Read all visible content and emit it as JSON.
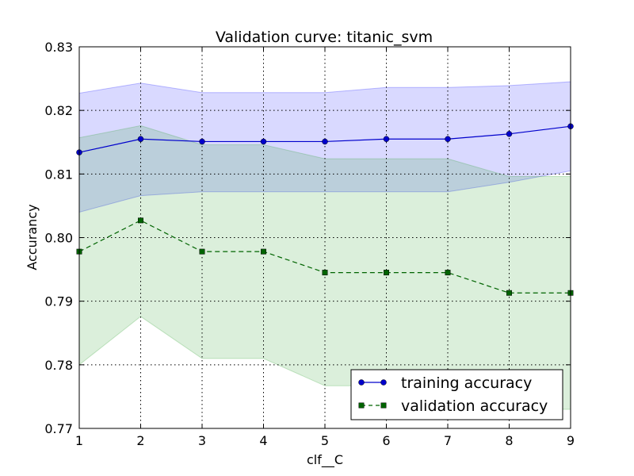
{
  "chart_data": {
    "type": "line",
    "title": "Validation curve: titanic_svm",
    "xlabel": "clf__C",
    "ylabel": "Accurancy",
    "xlim": [
      1,
      9
    ],
    "ylim": [
      0.77,
      0.83
    ],
    "x": [
      1,
      2,
      3,
      4,
      5,
      6,
      7,
      8,
      9
    ],
    "x_ticks": [
      "1",
      "2",
      "3",
      "4",
      "5",
      "6",
      "7",
      "8",
      "9"
    ],
    "y_ticks": [
      "0.77",
      "0.78",
      "0.79",
      "0.80",
      "0.81",
      "0.82",
      "0.83"
    ],
    "grid": true,
    "legend_position": "lower-right",
    "series": [
      {
        "name": "training accuracy",
        "values": [
          0.8134,
          0.8155,
          0.8151,
          0.8151,
          0.8151,
          0.8155,
          0.8155,
          0.8163,
          0.8175
        ],
        "band_upper": [
          0.8227,
          0.8243,
          0.8228,
          0.8228,
          0.8228,
          0.8236,
          0.8236,
          0.8239,
          0.8245
        ],
        "band_lower": [
          0.804,
          0.8066,
          0.8072,
          0.8072,
          0.8072,
          0.8072,
          0.8072,
          0.8087,
          0.8105
        ],
        "color": "#0000cc",
        "band_color": "#0000ff",
        "marker": "circle",
        "linestyle": "solid"
      },
      {
        "name": "validation accuracy",
        "values": [
          0.7978,
          0.8027,
          0.7978,
          0.7978,
          0.7945,
          0.7945,
          0.7945,
          0.7913,
          0.7913
        ],
        "band_upper": [
          0.8157,
          0.8176,
          0.8146,
          0.8146,
          0.8124,
          0.8124,
          0.8124,
          0.8096,
          0.8096
        ],
        "band_lower": [
          0.78,
          0.7876,
          0.781,
          0.781,
          0.7767,
          0.7767,
          0.7767,
          0.773,
          0.773
        ],
        "color": "#006400",
        "band_color": "#2ca02c",
        "marker": "square",
        "linestyle": "dashed"
      }
    ]
  }
}
